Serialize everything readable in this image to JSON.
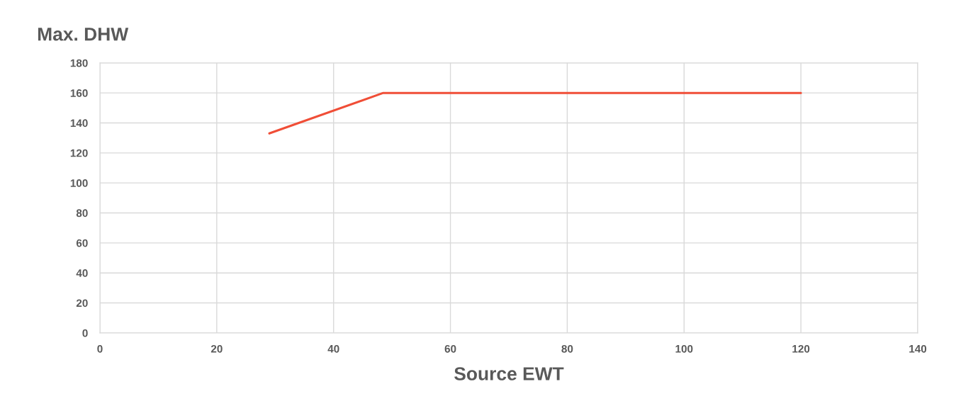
{
  "chart_data": {
    "type": "line",
    "title": "Max. DHW",
    "xlabel": "Source EWT",
    "series": [
      {
        "color": "#f04e37",
        "x": [
          29,
          48.5,
          120
        ],
        "values": [
          133,
          160,
          160
        ]
      }
    ],
    "xlim": [
      0,
      140
    ],
    "xticks": [
      0,
      20,
      40,
      60,
      80,
      100,
      120,
      140
    ],
    "ylim": [
      0,
      180
    ],
    "yticks": [
      0,
      20,
      40,
      60,
      80,
      100,
      120,
      140,
      160,
      180
    ],
    "grid": true,
    "marker": "none",
    "line_style": "solid"
  }
}
